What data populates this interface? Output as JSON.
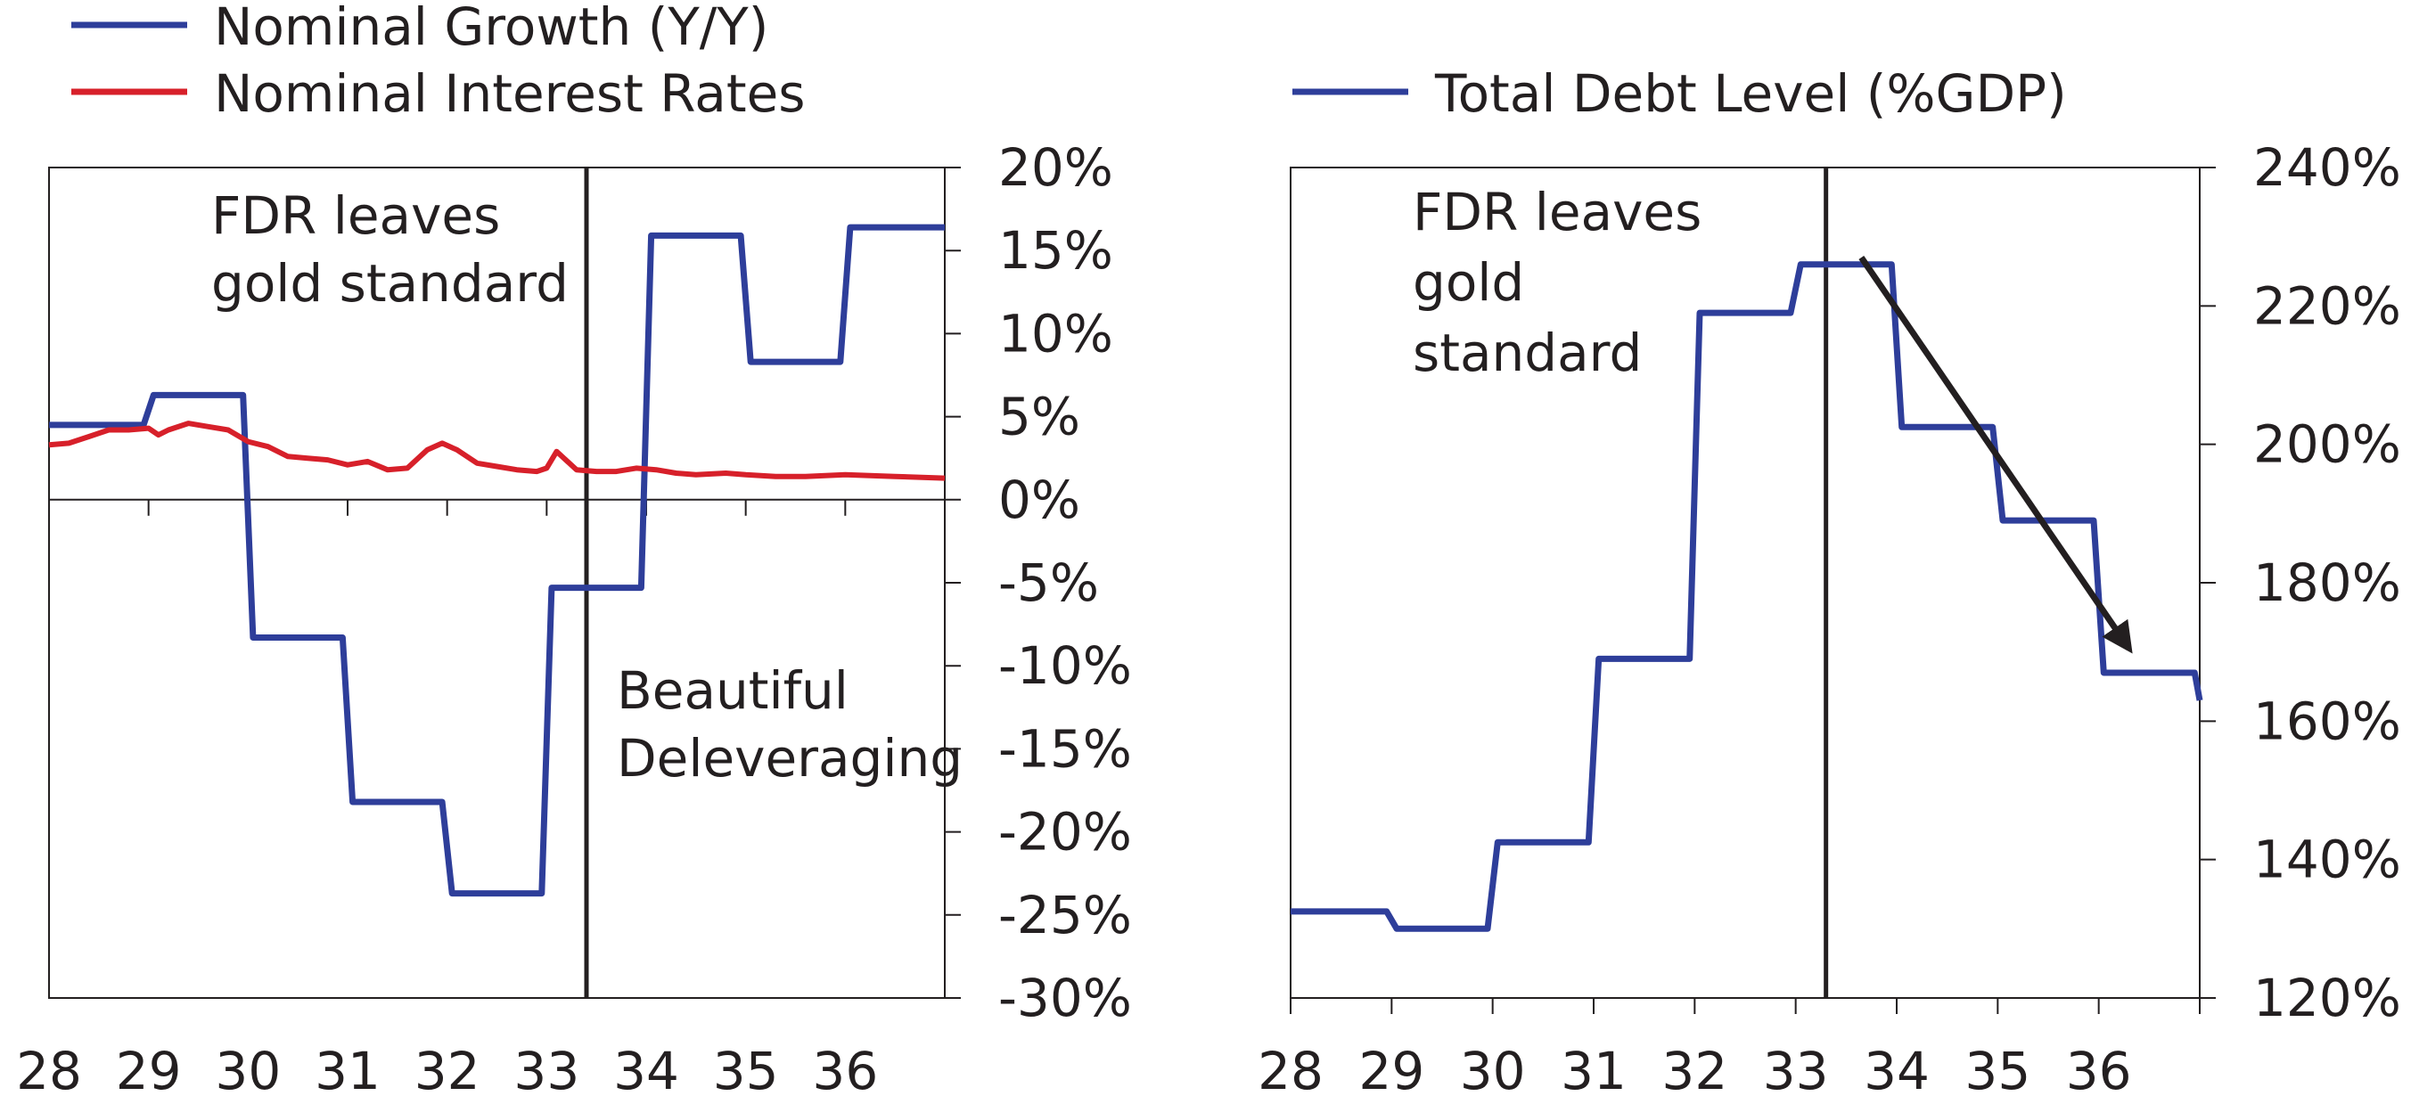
{
  "chart_data": [
    {
      "type": "line",
      "legend": [
        "Nominal Growth (Y/Y)",
        "Nominal Interest Rates"
      ],
      "legend_position": "top",
      "x_tick_labels": [
        "28",
        "29",
        "30",
        "31",
        "32",
        "33",
        "34",
        "35",
        "36"
      ],
      "xlim": [
        28,
        37
      ],
      "ylim": [
        -30,
        20
      ],
      "y_tick_labels": [
        "20%",
        "15%",
        "10%",
        "5%",
        "0%",
        "-5%",
        "-10%",
        "-15%",
        "-20%",
        "-25%",
        "-30%"
      ],
      "y_axis_side": "right",
      "grid": false,
      "annotations": [
        {
          "lines": [
            "FDR leaves",
            "gold standard"
          ]
        },
        {
          "lines": [
            "Beautiful",
            "Deleveraging"
          ]
        }
      ],
      "vertical_marker_x": 33.4,
      "series": [
        {
          "name": "Nominal Growth (Y/Y)",
          "color": "#2e3e9a",
          "x": [
            28.0,
            28.95,
            29.05,
            29.95,
            30.05,
            30.95,
            31.05,
            31.95,
            32.05,
            32.95,
            33.05,
            33.95,
            34.05,
            34.95,
            35.05,
            35.95,
            36.05,
            37.0
          ],
          "y": [
            4.5,
            4.5,
            6.3,
            6.3,
            -8.3,
            -8.3,
            -18.2,
            -18.2,
            -23.7,
            -23.7,
            -5.3,
            -5.3,
            15.9,
            15.9,
            8.3,
            8.3,
            16.4,
            16.4
          ]
        },
        {
          "name": "Nominal Interest Rates",
          "color": "#d7202a",
          "x": [
            28.0,
            28.2,
            28.4,
            28.6,
            28.8,
            29.0,
            29.1,
            29.2,
            29.4,
            29.6,
            29.8,
            30.0,
            30.2,
            30.4,
            30.6,
            30.8,
            31.0,
            31.2,
            31.4,
            31.6,
            31.8,
            31.95,
            32.1,
            32.3,
            32.5,
            32.7,
            32.9,
            33.0,
            33.1,
            33.3,
            33.5,
            33.7,
            33.9,
            34.1,
            34.3,
            34.5,
            34.8,
            35.0,
            35.3,
            35.6,
            36.0,
            36.5,
            37.0
          ],
          "y": [
            3.3,
            3.4,
            3.8,
            4.2,
            4.2,
            4.3,
            3.9,
            4.2,
            4.6,
            4.4,
            4.2,
            3.5,
            3.2,
            2.6,
            2.5,
            2.4,
            2.1,
            2.3,
            1.8,
            1.9,
            3.0,
            3.4,
            3.0,
            2.2,
            2.0,
            1.8,
            1.7,
            1.9,
            2.9,
            1.8,
            1.7,
            1.7,
            1.9,
            1.8,
            1.6,
            1.5,
            1.6,
            1.5,
            1.4,
            1.4,
            1.5,
            1.4,
            1.3
          ]
        }
      ]
    },
    {
      "type": "line",
      "legend": [
        "Total Debt Level (%GDP)"
      ],
      "legend_position": "top",
      "x_tick_labels": [
        "28",
        "29",
        "30",
        "31",
        "32",
        "33",
        "34",
        "35",
        "36"
      ],
      "xlim": [
        28,
        37
      ],
      "ylim": [
        120,
        240
      ],
      "y_tick_labels": [
        "240%",
        "220%",
        "200%",
        "180%",
        "160%",
        "140%",
        "120%"
      ],
      "y_axis_side": "right",
      "grid": false,
      "annotations": [
        {
          "lines": [
            "FDR leaves",
            "gold",
            "standard"
          ]
        }
      ],
      "vertical_marker_x": 33.3,
      "trend_arrow": {
        "from": [
          33.65,
          227.0
        ],
        "to": [
          36.3,
          170.5
        ]
      },
      "series": [
        {
          "name": "Total Debt Level (%GDP)",
          "color": "#2e3e9a",
          "x": [
            28.0,
            28.95,
            29.05,
            29.95,
            30.05,
            30.95,
            31.05,
            31.95,
            32.05,
            32.95,
            33.05,
            33.95,
            34.05,
            34.95,
            35.05,
            35.95,
            36.05,
            36.95,
            37.0
          ],
          "y": [
            132.5,
            132.5,
            130.0,
            130.0,
            142.5,
            142.5,
            169.0,
            169.0,
            219.0,
            219.0,
            226.0,
            226.0,
            202.5,
            202.5,
            189.0,
            189.0,
            167.0,
            167.0,
            163.0
          ]
        }
      ]
    }
  ]
}
